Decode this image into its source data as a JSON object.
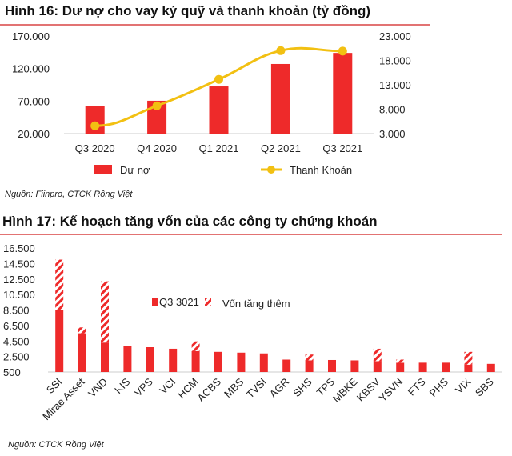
{
  "colors": {
    "bar": "#ee2a2a",
    "line": "#f2c012",
    "rule": "#d94545"
  },
  "chart_data": [
    {
      "type": "bar+line",
      "title": "Hình 16: Dư nợ cho vay ký quỹ và thanh khoản (tỷ đồng)",
      "source": "Nguồn: Fiinpro, CTCK Rồng Việt",
      "categories": [
        "Q3 2020",
        "Q4 2020",
        "Q1 2021",
        "Q2 2021",
        "Q3 2021"
      ],
      "series": [
        {
          "name": "Dư nợ",
          "type": "bar",
          "axis": "left",
          "values": [
            62000,
            70500,
            92500,
            127000,
            144000
          ]
        },
        {
          "name": "Thanh Khoản",
          "type": "line",
          "axis": "right",
          "values": [
            4600,
            8700,
            14100,
            20000,
            19900
          ]
        }
      ],
      "ylim_left": [
        20000,
        170000
      ],
      "yticks_left": [
        "170.000",
        "120.000",
        "70.000",
        "20.000"
      ],
      "ylim_right": [
        3000,
        23000
      ],
      "yticks_right": [
        "23.000",
        "18.000",
        "13.000",
        "8.000",
        "3.000"
      ],
      "legend": "bottom",
      "grid": false
    },
    {
      "type": "stacked-bar",
      "title": "Hình 17: Kế hoạch tăng vốn của các công ty chứng khoán",
      "source": "Nguồn: CTCK Rồng Việt",
      "categories": [
        "SSI",
        "Mirae Asset",
        "VND",
        "KIS",
        "VPS",
        "VCI",
        "HCM",
        "ACBS",
        "MBS",
        "TVSI",
        "AGR",
        "SHS",
        "TPS",
        "MBKE",
        "KBSV",
        "YSVN",
        "FTS",
        "PHS",
        "VIX",
        "SBS"
      ],
      "series": [
        {
          "name": "Q3 3021",
          "pattern": "solid",
          "values": [
            8500,
            5500,
            4300,
            3900,
            3700,
            3500,
            3200,
            3100,
            3000,
            2900,
            2100,
            2000,
            2050,
            2000,
            1900,
            1700,
            1700,
            1700,
            1450,
            1550
          ]
        },
        {
          "name": "Vốn tăng thêm",
          "pattern": "hatched",
          "values": [
            6500,
            750,
            7900,
            0,
            0,
            0,
            1250,
            0,
            0,
            0,
            0,
            750,
            0,
            0,
            1600,
            400,
            0,
            0,
            1650,
            0
          ]
        }
      ],
      "ylim": [
        500,
        16500
      ],
      "yticks": [
        "16.500",
        "14.500",
        "12.500",
        "10.500",
        "8.500",
        "6.500",
        "4.500",
        "2.500",
        "500"
      ],
      "legend": "top-center",
      "grid": false
    }
  ]
}
